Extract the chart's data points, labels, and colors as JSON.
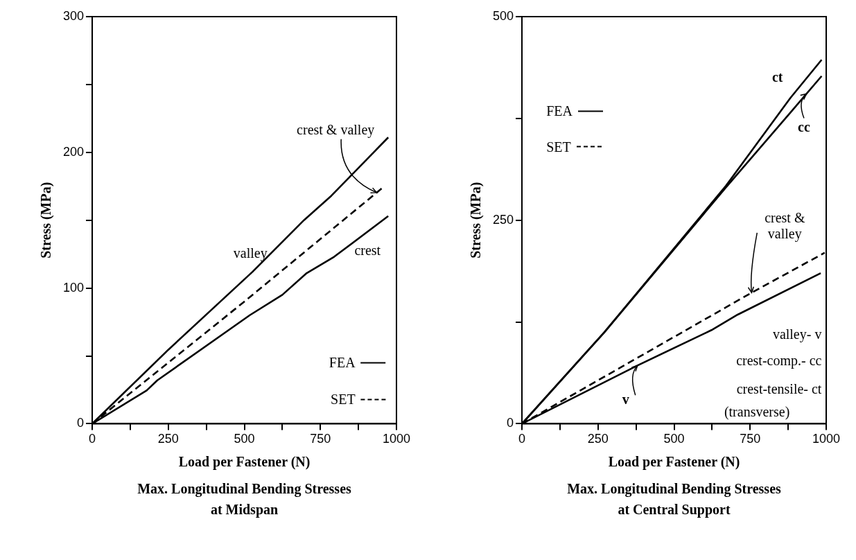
{
  "chart_data": [
    {
      "type": "line",
      "title": "Max. Longitudinal Bending Stresses\nat Midspan",
      "xlabel": "Load per Fastener (N)",
      "ylabel": "Stress (MPa)",
      "xlim": [
        0,
        1000
      ],
      "ylim": [
        0,
        300
      ],
      "xticks": [
        0,
        {
          "value": 125,
          "label": null
        },
        250,
        {
          "value": 375,
          "label": null
        },
        500,
        {
          "value": 625,
          "label": null
        },
        750,
        {
          "value": 875,
          "label": null
        },
        1000
      ],
      "yticks": [
        0,
        {
          "value": 50,
          "label": null
        },
        100,
        {
          "value": 150,
          "label": null
        },
        200,
        {
          "value": 250,
          "label": null
        },
        300
      ],
      "series": [
        {
          "name": "valley",
          "color": "#000000",
          "line_style": "solid",
          "x": [
            0,
            250,
            527,
            696,
            786,
            973
          ],
          "values": [
            0,
            54.5,
            112,
            150,
            168,
            211
          ]
        },
        {
          "name": "crest",
          "color": "#000000",
          "line_style": "solid",
          "x": [
            0,
            179,
            214,
            518,
            625,
            705,
            795,
            973
          ],
          "values": [
            0,
            24.5,
            32,
            80,
            95,
            111,
            123,
            153
          ]
        },
        {
          "name": "crest & valley",
          "color": "#000000",
          "line_style": "dashed",
          "x": [
            0,
            500,
            955
          ],
          "values": [
            0,
            90,
            174
          ]
        }
      ],
      "annotations": [
        "FEA",
        "SET"
      ]
    },
    {
      "type": "line",
      "title": "Max. Longitudinal Bending Stresses\nat Central Support",
      "xlabel": "Load per Fastener (N)",
      "ylabel": "Stress (MPa)",
      "xlim": [
        0,
        1000
      ],
      "ylim": [
        0,
        500
      ],
      "xticks": [
        0,
        {
          "value": 125,
          "label": null
        },
        250,
        {
          "value": 375,
          "label": null
        },
        500,
        {
          "value": 625,
          "label": null
        },
        750,
        {
          "value": 875,
          "label": null
        },
        1000
      ],
      "yticks": [
        0,
        {
          "value": 125,
          "label": null
        },
        250,
        {
          "value": 375,
          "label": null
        },
        500
      ],
      "series": [
        {
          "name": "ct",
          "color": "#000000",
          "line_style": "solid",
          "x": [
            0,
            270,
            670,
            882,
            985
          ],
          "values": [
            0,
            112,
            292,
            400,
            447
          ]
        },
        {
          "name": "cc",
          "color": "#000000",
          "line_style": "solid",
          "x": [
            0,
            270,
            670,
            882,
            985
          ],
          "values": [
            0,
            112,
            290,
            382,
            427
          ]
        },
        {
          "name": "v",
          "color": "#000000",
          "line_style": "solid",
          "x": [
            0,
            382,
            623,
            709,
            982
          ],
          "values": [
            0,
            72,
            115,
            134,
            185
          ]
        },
        {
          "name": "crest & valley",
          "color": "#000000",
          "line_style": "dashed",
          "x": [
            0,
            755,
            995
          ],
          "values": [
            0,
            161,
            210
          ]
        }
      ],
      "annotations": [
        "FEA",
        "SET",
        "valley- v",
        "crest-comp.- cc",
        "crest-tensile- ct",
        "(transverse)"
      ],
      "legend": "bottom right"
    }
  ]
}
